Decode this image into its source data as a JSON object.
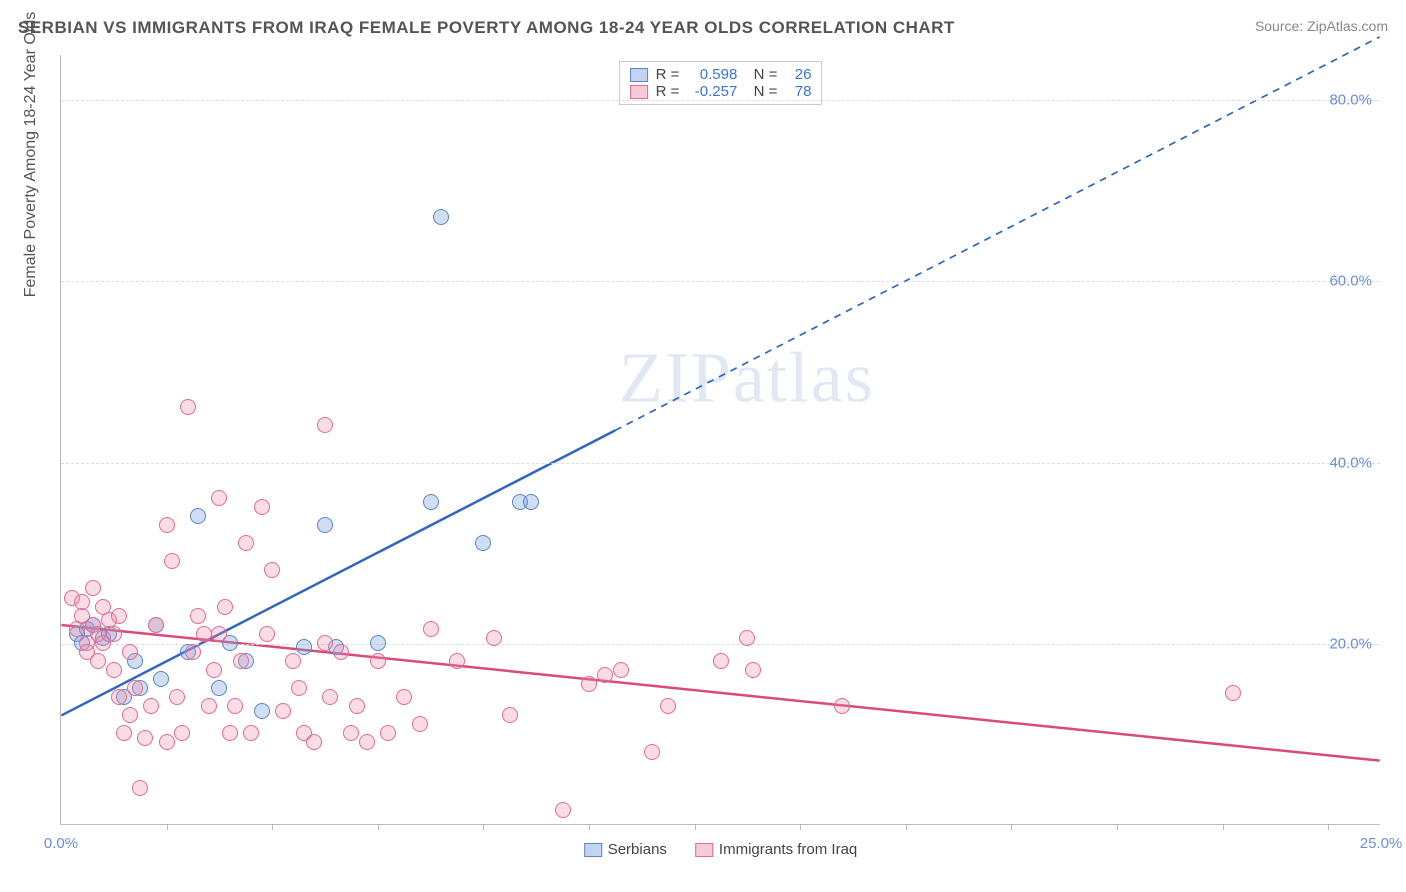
{
  "title": "SERBIAN VS IMMIGRANTS FROM IRAQ FEMALE POVERTY AMONG 18-24 YEAR OLDS CORRELATION CHART",
  "source": "Source: ZipAtlas.com",
  "y_axis_title": "Female Poverty Among 18-24 Year Olds",
  "watermark": "ZIPatlas",
  "chart": {
    "type": "scatter",
    "background_color": "#ffffff",
    "grid_color": "#dddddd",
    "axis_color": "#bbbbbb",
    "tick_color": "#6a8fd8",
    "xlim": [
      0,
      25
    ],
    "ylim": [
      0,
      85
    ],
    "x_ticks": [
      0,
      25
    ],
    "x_tick_labels": [
      "0.0%",
      "25.0%"
    ],
    "x_minor_ticks": [
      2,
      4,
      6,
      8,
      10,
      12,
      14,
      16,
      18,
      20,
      22,
      24
    ],
    "y_ticks": [
      20,
      40,
      60,
      80
    ],
    "y_tick_labels": [
      "20.0%",
      "40.0%",
      "60.0%",
      "80.0%"
    ],
    "marker_size": 16,
    "series": [
      {
        "name": "Serbians",
        "color_fill": "rgba(120,160,220,0.35)",
        "color_stroke": "#5a86c8",
        "R": "0.598",
        "N": "26",
        "trend": {
          "x1": 0,
          "y1": 12,
          "x2": 25,
          "y2": 87,
          "solid_until_x": 10.5,
          "color": "#2f66c4",
          "width": 2.5
        },
        "points": [
          [
            0.3,
            21
          ],
          [
            0.5,
            21.5
          ],
          [
            0.4,
            20
          ],
          [
            0.6,
            22
          ],
          [
            0.8,
            20.5
          ],
          [
            0.9,
            21
          ],
          [
            1.2,
            14
          ],
          [
            1.4,
            18
          ],
          [
            1.5,
            15
          ],
          [
            1.8,
            22
          ],
          [
            1.9,
            16
          ],
          [
            2.4,
            19
          ],
          [
            2.6,
            34
          ],
          [
            3.0,
            15
          ],
          [
            3.2,
            20
          ],
          [
            3.5,
            18
          ],
          [
            3.8,
            12.5
          ],
          [
            4.6,
            19.5
          ],
          [
            5.2,
            19.5
          ],
          [
            5.0,
            33
          ],
          [
            6.0,
            20
          ],
          [
            7.0,
            35.5
          ],
          [
            7.2,
            67
          ],
          [
            8.0,
            31
          ],
          [
            8.7,
            35.5
          ],
          [
            8.9,
            35.5
          ]
        ]
      },
      {
        "name": "Immigrants from Iraq",
        "color_fill": "rgba(235,140,170,0.3)",
        "color_stroke": "#e36b95",
        "R": "-0.257",
        "N": "78",
        "trend": {
          "x1": 0,
          "y1": 22,
          "x2": 25,
          "y2": 7,
          "color": "#d94b78",
          "width": 2.5
        },
        "points": [
          [
            0.2,
            25
          ],
          [
            0.3,
            21.5
          ],
          [
            0.4,
            23
          ],
          [
            0.5,
            20
          ],
          [
            0.6,
            22
          ],
          [
            0.7,
            21
          ],
          [
            0.8,
            20
          ],
          [
            0.9,
            22.5
          ],
          [
            1.0,
            21
          ],
          [
            0.4,
            24.5
          ],
          [
            0.6,
            26
          ],
          [
            0.8,
            24
          ],
          [
            1.1,
            23
          ],
          [
            1.2,
            10
          ],
          [
            1.3,
            19
          ],
          [
            1.4,
            15
          ],
          [
            1.5,
            4
          ],
          [
            1.6,
            9.5
          ],
          [
            1.7,
            13
          ],
          [
            1.8,
            22
          ],
          [
            2.0,
            33
          ],
          [
            2.1,
            29
          ],
          [
            2.2,
            14
          ],
          [
            2.3,
            10
          ],
          [
            2.4,
            46
          ],
          [
            2.5,
            19
          ],
          [
            2.6,
            23
          ],
          [
            2.8,
            13
          ],
          [
            2.9,
            17
          ],
          [
            3.0,
            36
          ],
          [
            3.1,
            24
          ],
          [
            3.2,
            10
          ],
          [
            3.3,
            13
          ],
          [
            3.4,
            18
          ],
          [
            3.5,
            31
          ],
          [
            3.6,
            10
          ],
          [
            3.8,
            35
          ],
          [
            4.0,
            28
          ],
          [
            4.2,
            12.5
          ],
          [
            4.4,
            18
          ],
          [
            4.6,
            10
          ],
          [
            4.8,
            9
          ],
          [
            5.0,
            44
          ],
          [
            5.1,
            14
          ],
          [
            5.3,
            19
          ],
          [
            5.5,
            10
          ],
          [
            5.6,
            13
          ],
          [
            5.8,
            9
          ],
          [
            6.0,
            18
          ],
          [
            6.2,
            10
          ],
          [
            6.5,
            14
          ],
          [
            7.0,
            21.5
          ],
          [
            7.5,
            18
          ],
          [
            8.2,
            20.5
          ],
          [
            8.5,
            12
          ],
          [
            9.5,
            1.5
          ],
          [
            10.0,
            15.5
          ],
          [
            10.3,
            16.5
          ],
          [
            10.6,
            17
          ],
          [
            11.2,
            8
          ],
          [
            11.5,
            13
          ],
          [
            12.5,
            18
          ],
          [
            13.0,
            20.5
          ],
          [
            13.1,
            17
          ],
          [
            14.8,
            13
          ],
          [
            22.2,
            14.5
          ],
          [
            0.5,
            19
          ],
          [
            0.7,
            18
          ],
          [
            1.0,
            17
          ],
          [
            1.1,
            14
          ],
          [
            1.3,
            12
          ],
          [
            2.0,
            9
          ],
          [
            2.7,
            21
          ],
          [
            3.0,
            21
          ],
          [
            4.5,
            15
          ],
          [
            5.0,
            20
          ],
          [
            6.8,
            11
          ],
          [
            3.9,
            21
          ]
        ]
      }
    ]
  },
  "legend_bottom": {
    "items": [
      "Serbians",
      "Immigrants from Iraq"
    ]
  }
}
